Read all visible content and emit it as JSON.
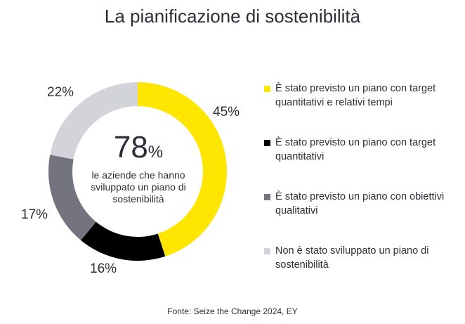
{
  "title": "La pianificazione di sostenibilità",
  "center": {
    "value": "78",
    "unit": "%",
    "caption": "le aziende che hanno sviluppato un piano di sostenibilità"
  },
  "source": "Fonte: Seize the Change 2024, EY",
  "chart_data": {
    "type": "pie",
    "title": "La pianificazione di sostenibilità",
    "legend_position": "right",
    "slices": [
      {
        "label": "È stato previsto un piano con target quantitativi e relativi tempi",
        "value": 45,
        "display": "45%",
        "color": "#ffe600"
      },
      {
        "label": "È stato previsto un piano con target quantitativi",
        "value": 16,
        "display": "16%",
        "color": "#000000"
      },
      {
        "label": "È stato previsto un piano con obiettivi qualitativi",
        "value": 17,
        "display": "17%",
        "color": "#747480"
      },
      {
        "label": "Non è stato sviluppato un piano di sostenibilità",
        "value": 22,
        "display": "22%",
        "color": "#d3d3da"
      }
    ]
  }
}
